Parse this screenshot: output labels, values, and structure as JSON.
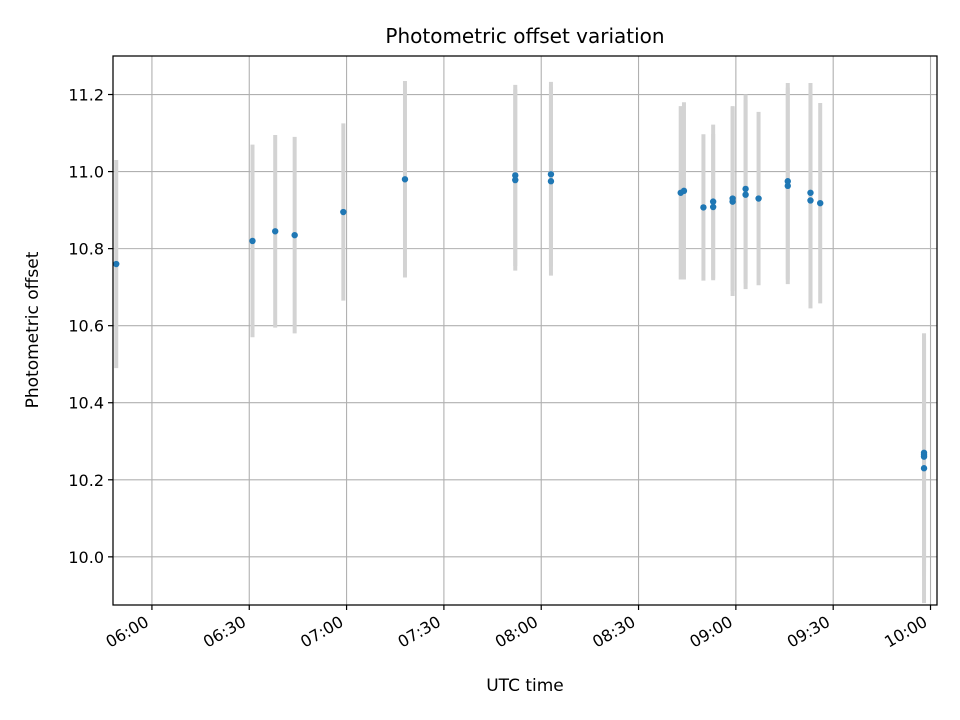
{
  "chart_data": {
    "type": "scatter",
    "title": "Photometric offset variation",
    "xlabel": "UTC time",
    "ylabel": "Photometric offset",
    "x_ticks": [
      "06:00",
      "06:30",
      "07:00",
      "07:30",
      "08:00",
      "08:30",
      "09:00",
      "09:30",
      "10:00"
    ],
    "y_ticks": [
      "10.0",
      "10.2",
      "10.4",
      "10.6",
      "10.8",
      "11.0",
      "11.2"
    ],
    "xlim": [
      "05:48",
      "10:02"
    ],
    "ylim": [
      9.875,
      11.3
    ],
    "grid": true,
    "colors": {
      "point": "#1f77b4",
      "errorbar": "#d3d3d3",
      "grid": "#b0b0b0"
    },
    "series": [
      {
        "points": [
          {
            "x": "05:49",
            "y": 10.76,
            "err": 0.27
          },
          {
            "x": "06:31",
            "y": 10.82,
            "err": 0.25
          },
          {
            "x": "06:38",
            "y": 10.845,
            "err": 0.25
          },
          {
            "x": "06:44",
            "y": 10.835,
            "err": 0.255
          },
          {
            "x": "06:59",
            "y": 10.895,
            "err": 0.23
          },
          {
            "x": "07:18",
            "y": 10.98,
            "err": 0.255
          },
          {
            "x": "07:52",
            "y": 10.99,
            "err": 0.235
          },
          {
            "x": "07:52",
            "y": 10.978,
            "err": 0.235
          },
          {
            "x": "08:03",
            "y": 10.993,
            "err": 0.24
          },
          {
            "x": "08:03",
            "y": 10.975,
            "err": 0.245
          },
          {
            "x": "08:43",
            "y": 10.945,
            "err": 0.225
          },
          {
            "x": "08:44",
            "y": 10.95,
            "err": 0.23
          },
          {
            "x": "08:50",
            "y": 10.907,
            "err": 0.19
          },
          {
            "x": "08:53",
            "y": 10.908,
            "err": 0.19
          },
          {
            "x": "08:53",
            "y": 10.922,
            "err": 0.2
          },
          {
            "x": "08:59",
            "y": 10.922,
            "err": 0.245
          },
          {
            "x": "08:59",
            "y": 10.93,
            "err": 0.24
          },
          {
            "x": "09:03",
            "y": 10.955,
            "err": 0.245
          },
          {
            "x": "09:03",
            "y": 10.94,
            "err": 0.245
          },
          {
            "x": "09:07",
            "y": 10.93,
            "err": 0.225
          },
          {
            "x": "09:16",
            "y": 10.975,
            "err": 0.255
          },
          {
            "x": "09:16",
            "y": 10.963,
            "err": 0.255
          },
          {
            "x": "09:23",
            "y": 10.945,
            "err": 0.285
          },
          {
            "x": "09:23",
            "y": 10.925,
            "err": 0.28
          },
          {
            "x": "09:26",
            "y": 10.918,
            "err": 0.26
          },
          {
            "x": "09:58",
            "y": 10.23,
            "err": 0.35
          },
          {
            "x": "09:58",
            "y": 10.265,
            "err": 0.315
          },
          {
            "x": "09:58",
            "y": 10.26,
            "err": 0.3
          },
          {
            "x": "09:58",
            "y": 10.27,
            "err": 0.295
          }
        ]
      }
    ]
  }
}
